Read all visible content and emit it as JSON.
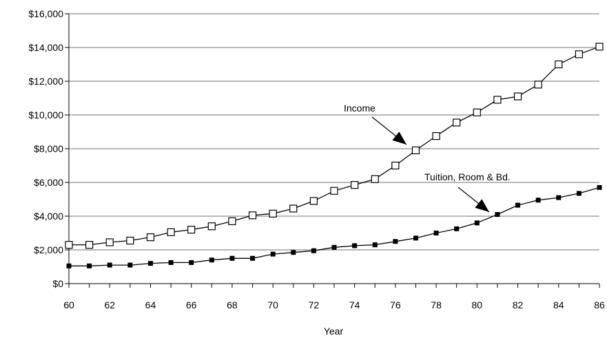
{
  "chart_data": {
    "type": "line",
    "title": "",
    "xlabel": "Year",
    "ylabel": "",
    "x": [
      60,
      61,
      62,
      63,
      64,
      65,
      66,
      67,
      68,
      69,
      70,
      71,
      72,
      73,
      74,
      75,
      76,
      77,
      78,
      79,
      80,
      81,
      82,
      83,
      84,
      85,
      86
    ],
    "xticks": [
      "60",
      "62",
      "64",
      "66",
      "68",
      "70",
      "72",
      "74",
      "76",
      "78",
      "80",
      "82",
      "84",
      "86"
    ],
    "xlim": [
      60,
      86
    ],
    "ylim": [
      0,
      16000
    ],
    "yticks": [
      0,
      2000,
      4000,
      6000,
      8000,
      10000,
      12000,
      14000,
      16000
    ],
    "ytick_labels": [
      "$0",
      "$2,000",
      "$4,000",
      "$6,000",
      "$8,000",
      "$10,000",
      "$12,000",
      "$14,000",
      "$16,000"
    ],
    "grid": true,
    "legend": "none",
    "series": [
      {
        "name": "Income",
        "marker": "open-square",
        "values": [
          2300,
          2300,
          2450,
          2550,
          2750,
          3050,
          3200,
          3400,
          3700,
          4050,
          4150,
          4450,
          4900,
          5500,
          5850,
          6200,
          7000,
          7900,
          8750,
          9550,
          10150,
          10900,
          11100,
          11800,
          13000,
          13600,
          14050
        ]
      },
      {
        "name": "Tuition, Room & Bd.",
        "marker": "filled-square",
        "values": [
          1050,
          1050,
          1100,
          1100,
          1200,
          1250,
          1250,
          1400,
          1500,
          1500,
          1750,
          1850,
          1950,
          2150,
          2250,
          2300,
          2500,
          2700,
          3000,
          3250,
          3600,
          4100,
          4650,
          4950,
          5100,
          5350,
          5700
        ]
      }
    ],
    "annotations": [
      {
        "label": "Income",
        "series": 0,
        "arrow_to_x": 77
      },
      {
        "label": "Tuition, Room & Bd.",
        "series": 1,
        "arrow_to_x": 81
      }
    ]
  }
}
